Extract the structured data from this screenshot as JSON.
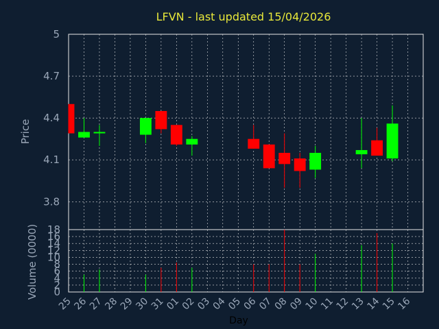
{
  "chart_data": {
    "type": "candlestick",
    "title": "LFVN - last updated 15/04/2026",
    "xlabel": "Day",
    "ylabel": "Price",
    "volume_label": "Volume (0000)",
    "ylim": [
      3.6,
      5.0
    ],
    "yticks": [
      "5",
      "4.7",
      "4.4",
      "4.1",
      "3.8"
    ],
    "ytick_values": [
      5.0,
      4.7,
      4.4,
      4.1,
      3.8
    ],
    "vlim": [
      0,
      18
    ],
    "vticks": [
      "18",
      "16",
      "14",
      "12",
      "10",
      "8",
      "6",
      "4",
      "2",
      "0"
    ],
    "vtick_values": [
      18,
      16,
      14,
      12,
      10,
      8,
      6,
      4,
      2,
      0
    ],
    "x_labels": [
      "25",
      "26",
      "27",
      "28",
      "29",
      "30",
      "31",
      "01",
      "02",
      "03",
      "04",
      "05",
      "06",
      "07",
      "08",
      "09",
      "10",
      "11",
      "12",
      "13",
      "14",
      "15",
      "16"
    ],
    "grid": true,
    "up_color": "#00ff00",
    "down_color": "#ff0000",
    "candles": [
      {
        "day": "25",
        "open": 4.5,
        "high": 4.5,
        "low": 4.29,
        "close": 4.29,
        "volume": 0
      },
      {
        "day": "26",
        "open": 4.26,
        "high": 4.4,
        "low": 4.26,
        "close": 4.3,
        "volume": 5
      },
      {
        "day": "27",
        "open": 4.29,
        "high": 4.35,
        "low": 4.2,
        "close": 4.3,
        "volume": 6.5
      },
      {
        "day": "30",
        "open": 4.28,
        "high": 4.4,
        "low": 4.22,
        "close": 4.4,
        "volume": 5
      },
      {
        "day": "31",
        "open": 4.45,
        "high": 4.45,
        "low": 4.29,
        "close": 4.32,
        "volume": 7
      },
      {
        "day": "01",
        "open": 4.35,
        "high": 4.35,
        "low": 4.2,
        "close": 4.21,
        "volume": 8.5
      },
      {
        "day": "02",
        "open": 4.21,
        "high": 4.27,
        "low": 4.13,
        "close": 4.25,
        "volume": 7
      },
      {
        "day": "06",
        "open": 4.25,
        "high": 4.35,
        "low": 4.18,
        "close": 4.18,
        "volume": 8
      },
      {
        "day": "07",
        "open": 4.21,
        "high": 4.21,
        "low": 4.04,
        "close": 4.04,
        "volume": 8
      },
      {
        "day": "08",
        "open": 4.15,
        "high": 4.29,
        "low": 3.9,
        "close": 4.07,
        "volume": 18
      },
      {
        "day": "09",
        "open": 4.11,
        "high": 4.15,
        "low": 3.9,
        "close": 4.02,
        "volume": 8
      },
      {
        "day": "10",
        "open": 4.03,
        "high": 4.2,
        "low": 3.97,
        "close": 4.15,
        "volume": 11
      },
      {
        "day": "13",
        "open": 4.14,
        "high": 4.4,
        "low": 4.04,
        "close": 4.17,
        "volume": 13.5
      },
      {
        "day": "14",
        "open": 4.24,
        "high": 4.33,
        "low": 4.13,
        "close": 4.13,
        "volume": 17
      },
      {
        "day": "15",
        "open": 4.11,
        "high": 4.49,
        "low": 4.09,
        "close": 4.36,
        "volume": 14
      }
    ]
  }
}
